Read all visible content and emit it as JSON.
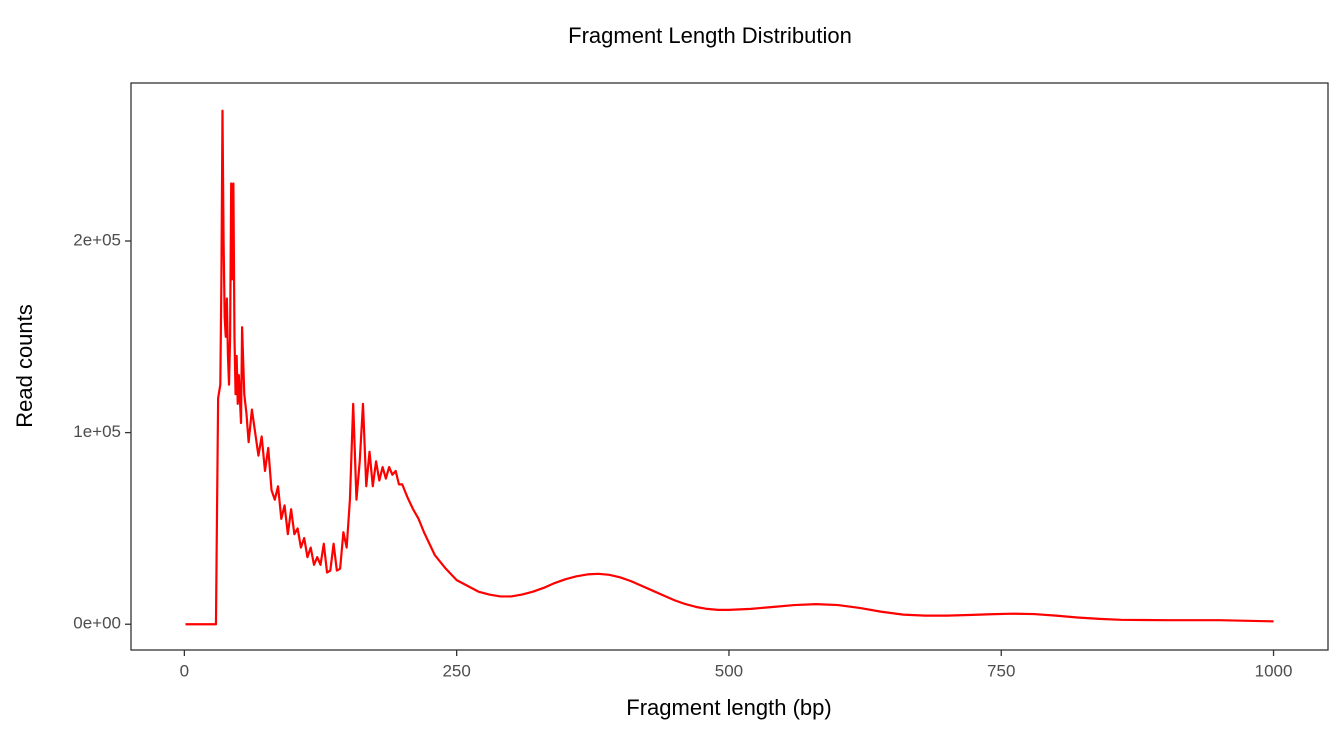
{
  "chart_data": {
    "type": "line",
    "title": "Fragment Length Distribution",
    "x_label": "Fragment length (bp)",
    "y_label": "Read counts",
    "xlim": [
      -49,
      1050
    ],
    "ylim": [
      -13450,
      282450
    ],
    "xticks": [
      0,
      250,
      500,
      750,
      1000
    ],
    "yticks": [
      {
        "value": 0,
        "label": "0e+00"
      },
      {
        "value": 100000,
        "label": "1e+05"
      },
      {
        "value": 200000,
        "label": "2e+05"
      }
    ],
    "series": [
      {
        "color": "#ff0000",
        "x": [
          1,
          29,
          30,
          31,
          33,
          34,
          35,
          36,
          37,
          38,
          39,
          40,
          41,
          42,
          43,
          44,
          45,
          46,
          47,
          48,
          49,
          50,
          52,
          53,
          55,
          57,
          59,
          62,
          65,
          68,
          71,
          74,
          77,
          80,
          83,
          86,
          89,
          92,
          95,
          98,
          101,
          104,
          107,
          110,
          113,
          116,
          119,
          122,
          125,
          128,
          131,
          134,
          137,
          140,
          143,
          146,
          149,
          152,
          155,
          158,
          161,
          164,
          167,
          170,
          173,
          176,
          179,
          182,
          185,
          188,
          191,
          194,
          197,
          200,
          205,
          210,
          215,
          220,
          225,
          230,
          240,
          250,
          260,
          270,
          280,
          290,
          300,
          310,
          320,
          330,
          340,
          350,
          360,
          370,
          380,
          390,
          400,
          410,
          420,
          430,
          440,
          450,
          460,
          470,
          480,
          490,
          500,
          520,
          540,
          560,
          580,
          600,
          620,
          640,
          660,
          680,
          700,
          720,
          740,
          760,
          780,
          800,
          820,
          840,
          860,
          880,
          900,
          950,
          1000
        ],
        "values": [
          0,
          0,
          60000,
          118000,
          125000,
          180000,
          268000,
          200000,
          160000,
          150000,
          170000,
          140000,
          125000,
          150000,
          230000,
          180000,
          230000,
          150000,
          120000,
          140000,
          115000,
          130000,
          105000,
          155000,
          120000,
          110000,
          95000,
          112000,
          100000,
          88000,
          98000,
          80000,
          92000,
          70000,
          65000,
          72000,
          55000,
          62000,
          47000,
          60000,
          47000,
          50000,
          40000,
          45000,
          35000,
          40000,
          31000,
          35000,
          31000,
          42000,
          27000,
          28000,
          42000,
          28000,
          29000,
          48000,
          40000,
          65000,
          115000,
          65000,
          85000,
          115000,
          72000,
          90000,
          72000,
          85000,
          75000,
          82000,
          76000,
          82000,
          78000,
          80000,
          73000,
          73000,
          66000,
          60000,
          55000,
          48000,
          42000,
          36000,
          29000,
          23000,
          20000,
          17000,
          15500,
          14500,
          14500,
          15500,
          17000,
          19000,
          21500,
          23500,
          25000,
          26000,
          26300,
          25800,
          24500,
          22500,
          20000,
          17500,
          15000,
          12500,
          10500,
          9000,
          8000,
          7500,
          7500,
          8000,
          9000,
          10000,
          10500,
          10000,
          8500,
          6500,
          5000,
          4500,
          4500,
          4800,
          5200,
          5500,
          5300,
          4500,
          3500,
          2800,
          2300,
          2200,
          2100,
          2100,
          1500
        ]
      }
    ]
  }
}
